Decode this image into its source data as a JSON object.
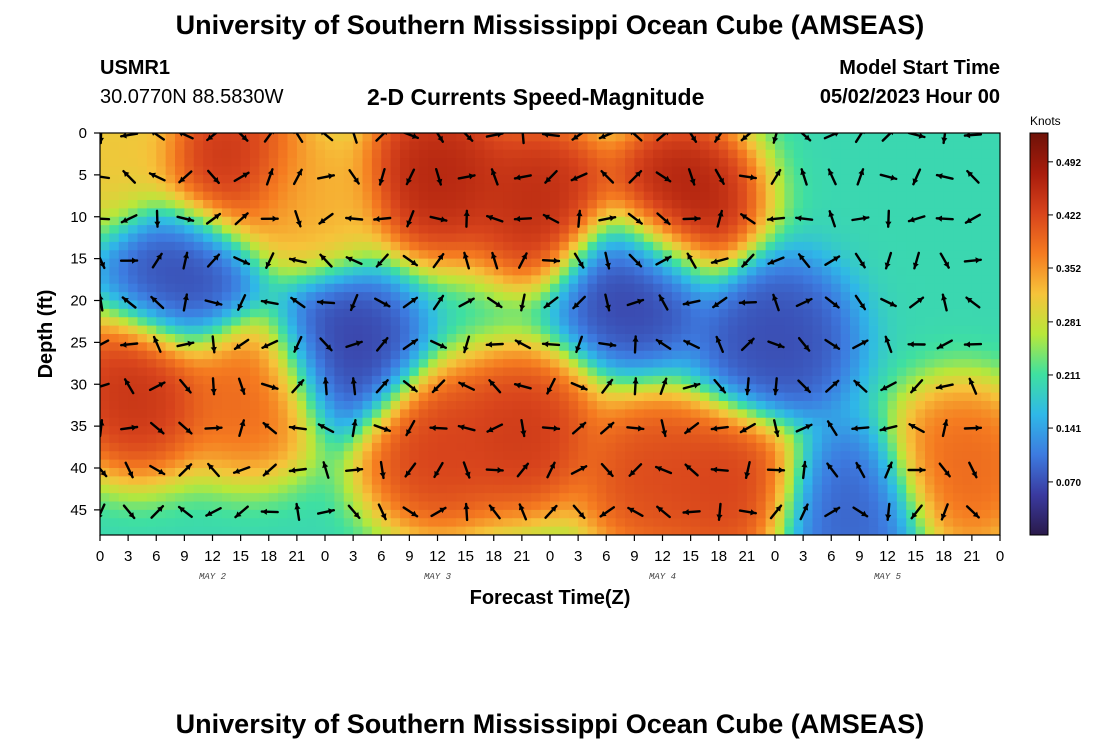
{
  "header": {
    "title": "University of Southern Mississippi Ocean Cube (AMSEAS)",
    "station": "USMR1",
    "coords": "30.0770N  88.5830W",
    "plot_title": "2-D Currents Speed-Magnitude",
    "model_start_label": "Model Start Time",
    "model_start_value": "05/02/2023 Hour 00"
  },
  "footer": {
    "title": "University of Southern Mississippi Ocean Cube (AMSEAS)"
  },
  "chart_data": {
    "type": "heatmap",
    "title": "2-D Currents Speed-Magnitude",
    "xlabel": "Forecast Time(Z)",
    "ylabel": "Depth (ft)",
    "x_ticks": [
      "0",
      "3",
      "6",
      "9",
      "12",
      "15",
      "18",
      "21",
      "0",
      "3",
      "6",
      "9",
      "12",
      "15",
      "18",
      "21",
      "0",
      "3",
      "6",
      "9",
      "12",
      "15",
      "18",
      "21",
      "0",
      "3",
      "6",
      "9",
      "12",
      "15",
      "18",
      "21",
      "0"
    ],
    "day_labels": [
      {
        "label": "MAY 2",
        "hour": 12
      },
      {
        "label": "MAY 3",
        "hour": 36
      },
      {
        "label": "MAY 4",
        "hour": 60
      },
      {
        "label": "MAY 5",
        "hour": 84
      }
    ],
    "x_range_hours": [
      0,
      96
    ],
    "y_ticks": [
      "0",
      "5",
      "10",
      "15",
      "20",
      "25",
      "30",
      "35",
      "40",
      "45"
    ],
    "y_range_ft": [
      0,
      48
    ],
    "colorbar": {
      "units": "Knots",
      "ticks": [
        "0.492",
        "0.422",
        "0.352",
        "0.281",
        "0.211",
        "0.141",
        "0.070"
      ],
      "tick_values": [
        0.492,
        0.422,
        0.352,
        0.281,
        0.211,
        0.141,
        0.07
      ],
      "range": [
        0.0,
        0.53
      ],
      "colors": [
        "#2a1a4a",
        "#3a3aa0",
        "#3d7be0",
        "#2fb8e8",
        "#3fe0a0",
        "#b8e83a",
        "#f6c33a",
        "#f57b20",
        "#d8441c",
        "#a81c0c",
        "#6e1208"
      ]
    },
    "speed_hotspots": [
      {
        "hour": 1,
        "depth_ft": 2,
        "speed": 0.32
      },
      {
        "hour": 14,
        "depth_ft": 4,
        "speed": 0.46
      },
      {
        "hour": 22,
        "depth_ft": 8,
        "speed": 0.34
      },
      {
        "hour": 36,
        "depth_ft": 5,
        "speed": 0.48
      },
      {
        "hour": 47,
        "depth_ft": 8,
        "speed": 0.47
      },
      {
        "hour": 62,
        "depth_ft": 8,
        "speed": 0.49
      },
      {
        "hour": 4,
        "depth_ft": 31,
        "speed": 0.46
      },
      {
        "hour": 16,
        "depth_ft": 31,
        "speed": 0.4
      },
      {
        "hour": 36,
        "depth_ft": 38,
        "speed": 0.44
      },
      {
        "hour": 45,
        "depth_ft": 36,
        "speed": 0.45
      },
      {
        "hour": 59,
        "depth_ft": 41,
        "speed": 0.43
      },
      {
        "hour": 67,
        "depth_ft": 42,
        "speed": 0.44
      },
      {
        "hour": 92,
        "depth_ft": 40,
        "speed": 0.4
      },
      {
        "hour": 9,
        "depth_ft": 17,
        "speed": 0.06
      },
      {
        "hour": 26,
        "depth_ft": 26,
        "speed": 0.05
      },
      {
        "hour": 57,
        "depth_ft": 18,
        "speed": 0.05
      },
      {
        "hour": 72,
        "depth_ft": 25,
        "speed": 0.06
      },
      {
        "hour": 80,
        "depth_ft": 45,
        "speed": 0.08
      }
    ],
    "base_speed": 0.2
  }
}
